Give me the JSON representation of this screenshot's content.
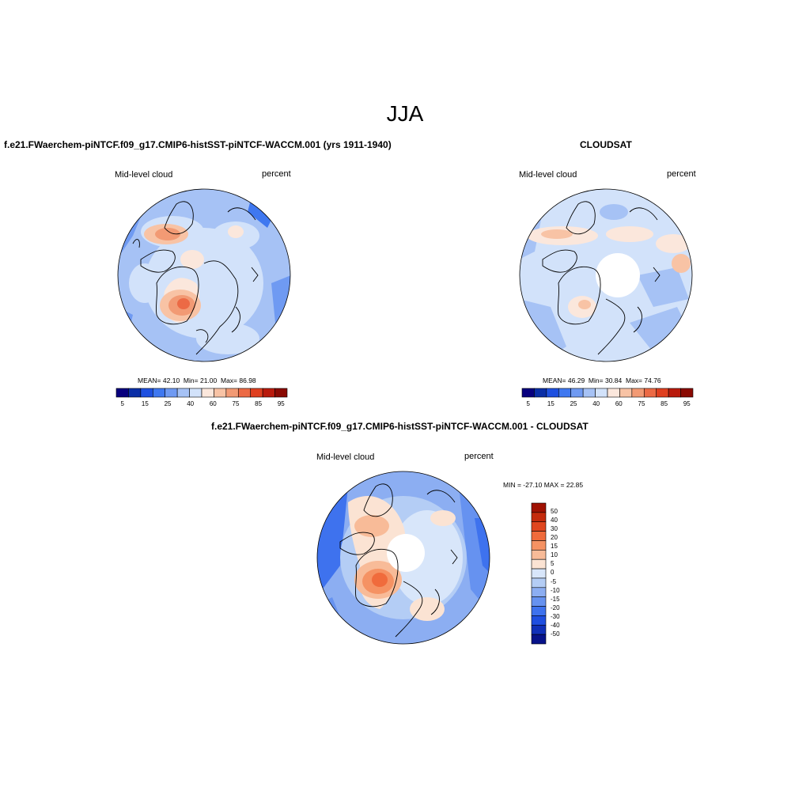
{
  "title": "JJA",
  "panels": [
    {
      "id": "model",
      "title": "f.e21.FWaerchem-piNTCF.f09_g17.CMIP6-histSST-piNTCF-WACCM.001 (yrs 1911-1940)",
      "left_label": "Mid-level cloud",
      "right_label": "percent",
      "stats": {
        "mean_label": "MEAN=",
        "mean": "42.10",
        "min_label": "Min=",
        "min": "21.00",
        "max_label": "Max=",
        "max": "86.98"
      },
      "colorbar_ticks": [
        "5",
        "15",
        "25",
        "40",
        "60",
        "75",
        "85",
        "95"
      ]
    },
    {
      "id": "obs",
      "title": "CLOUDSAT",
      "left_label": "Mid-level cloud",
      "right_label": "percent",
      "stats": {
        "mean_label": "MEAN=",
        "mean": "46.29",
        "min_label": "Min=",
        "min": "30.84",
        "max_label": "Max=",
        "max": "74.76"
      },
      "colorbar_ticks": [
        "5",
        "15",
        "25",
        "40",
        "60",
        "75",
        "85",
        "95"
      ]
    },
    {
      "id": "diff",
      "title": "f.e21.FWaerchem-piNTCF.f09_g17.CMIP6-histSST-piNTCF-WACCM.001 - CLOUDSAT",
      "left_label": "Mid-level cloud",
      "right_label": "percent",
      "stats": {
        "text": "MIN = -27.10 MAX =  22.85"
      },
      "colorbar_ticks": [
        "50",
        "40",
        "30",
        "20",
        "15",
        "10",
        "5",
        "0",
        "-5",
        "-10",
        "-15",
        "-20",
        "-30",
        "-40",
        "-50"
      ]
    }
  ],
  "colors": {
    "sequential": [
      "#08007e",
      "#0a2ea6",
      "#1e50e0",
      "#3f78f0",
      "#6f9af2",
      "#a6c2f5",
      "#d2e2fa",
      "#fbe7dc",
      "#f8c3a5",
      "#f29a74",
      "#ec6a45",
      "#df3f1f",
      "#b91a0c",
      "#8a0a03"
    ],
    "diverging": [
      "#a01203",
      "#c42b0d",
      "#e0461f",
      "#f06b3c",
      "#f59263",
      "#f8bb98",
      "#fbe3d3",
      "#d8e6fa",
      "#b4cdf5",
      "#8caef2",
      "#6692f0",
      "#3e72ee",
      "#1f4fe0",
      "#1030b8",
      "#07138a"
    ],
    "land_outline": "#000000",
    "background": "#ffffff"
  }
}
